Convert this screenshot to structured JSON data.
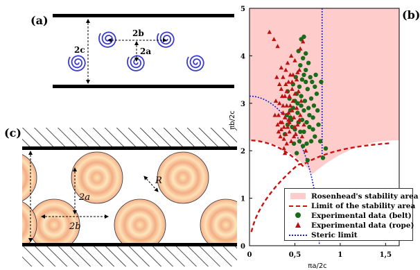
{
  "panel_a": {
    "label": "(a)",
    "dim_2b": "2b",
    "dim_2a": "2a",
    "dim_2c": "2c"
  },
  "panel_c": {
    "label": "(c)",
    "dim_2c": "2c",
    "dim_2a": "2a",
    "dim_2b": "2b",
    "dim_R": "R"
  },
  "panel_b": {
    "label": "(b)",
    "colors": {
      "stability_area": "#ffcccc",
      "limit_line": "#cc1111",
      "belt": "#1a6b1a",
      "rope": "#bb1111",
      "steric": "#1122cc"
    }
  },
  "chart_data": {
    "type": "scatter",
    "xlabel": "πa/2c",
    "ylabel": "πb/2c",
    "xlim": [
      0,
      1.65
    ],
    "ylim": [
      0,
      5
    ],
    "x_ticks": [
      "0",
      "0,5",
      "1",
      "1,5"
    ],
    "y_ticks": [
      "0",
      "1",
      "2",
      "3",
      "4",
      "5"
    ],
    "legend_position": "bottom-right",
    "series": [
      {
        "name": "Rosenhead's stability area",
        "kind": "region"
      },
      {
        "name": "Limit of the stability area",
        "kind": "dashed-line"
      },
      {
        "name": "Experimental data (belt)",
        "kind": "circle-markers",
        "points": [
          [
            0.39,
            2.35
          ],
          [
            0.42,
            2.55
          ],
          [
            0.45,
            2.7
          ],
          [
            0.48,
            2.9
          ],
          [
            0.5,
            3.05
          ],
          [
            0.52,
            3.2
          ],
          [
            0.55,
            3.35
          ],
          [
            0.58,
            3.5
          ],
          [
            0.6,
            3.6
          ],
          [
            0.62,
            3.7
          ],
          [
            0.44,
            3.1
          ],
          [
            0.47,
            2.5
          ],
          [
            0.53,
            2.8
          ],
          [
            0.57,
            2.95
          ],
          [
            0.6,
            2.4
          ],
          [
            0.63,
            2.6
          ],
          [
            0.65,
            2.9
          ],
          [
            0.68,
            3.1
          ],
          [
            0.7,
            2.7
          ],
          [
            0.72,
            2.3
          ],
          [
            0.55,
            2.2
          ],
          [
            0.5,
            2.45
          ],
          [
            0.58,
            2.65
          ],
          [
            0.61,
            3.05
          ],
          [
            0.64,
            3.3
          ],
          [
            0.67,
            3.55
          ],
          [
            0.56,
            3.8
          ],
          [
            0.59,
            3.95
          ],
          [
            0.54,
            4.1
          ],
          [
            0.62,
            4.05
          ],
          [
            0.57,
            4.35
          ],
          [
            0.6,
            4.4
          ],
          [
            0.48,
            3.4
          ],
          [
            0.51,
            3.55
          ],
          [
            0.45,
            2.85
          ],
          [
            0.66,
            2.5
          ],
          [
            0.71,
            2.95
          ],
          [
            0.74,
            3.2
          ],
          [
            0.69,
            3.45
          ],
          [
            0.76,
            2.55
          ],
          [
            0.78,
            2.2
          ],
          [
            0.81,
            1.85
          ],
          [
            0.84,
            2.05
          ],
          [
            0.52,
            1.95
          ],
          [
            0.49,
            2.15
          ],
          [
            0.63,
            2.15
          ],
          [
            0.42,
            3.25
          ],
          [
            0.73,
            3.6
          ],
          [
            0.79,
            3.45
          ],
          [
            0.65,
            3.85
          ],
          [
            0.53,
            3.0
          ],
          [
            0.6,
            2.85
          ],
          [
            0.66,
            2.75
          ],
          [
            0.57,
            3.15
          ],
          [
            0.46,
            2.65
          ],
          [
            0.7,
            2.45
          ],
          [
            0.54,
            2.6
          ],
          [
            0.62,
            3.45
          ],
          [
            0.68,
            2.2
          ],
          [
            0.75,
            2.85
          ],
          [
            0.41,
            2.75
          ],
          [
            0.59,
            2.1
          ],
          [
            0.64,
            1.8
          ],
          [
            0.72,
            3.35
          ],
          [
            0.56,
            2.4
          ]
        ]
      },
      {
        "name": "Experimental data (rope)",
        "kind": "triangle-markers",
        "points": [
          [
            0.22,
            4.5
          ],
          [
            0.27,
            4.35
          ],
          [
            0.31,
            4.2
          ],
          [
            0.3,
            3.55
          ],
          [
            0.35,
            3.3
          ],
          [
            0.33,
            3.0
          ],
          [
            0.37,
            2.8
          ],
          [
            0.36,
            2.6
          ],
          [
            0.39,
            3.15
          ],
          [
            0.41,
            2.95
          ],
          [
            0.38,
            2.5
          ],
          [
            0.34,
            2.3
          ],
          [
            0.4,
            3.4
          ],
          [
            0.43,
            2.65
          ],
          [
            0.45,
            3.6
          ],
          [
            0.42,
            3.85
          ],
          [
            0.47,
            3.3
          ],
          [
            0.44,
            2.4
          ],
          [
            0.46,
            2.2
          ],
          [
            0.49,
            2.7
          ],
          [
            0.5,
            3.9
          ],
          [
            0.48,
            3.05
          ],
          [
            0.52,
            3.5
          ],
          [
            0.51,
            2.35
          ],
          [
            0.55,
            3.7
          ],
          [
            0.53,
            2.55
          ],
          [
            0.37,
            3.55
          ],
          [
            0.32,
            2.75
          ],
          [
            0.35,
            2.45
          ],
          [
            0.41,
            2.15
          ],
          [
            0.44,
            3.15
          ],
          [
            0.4,
            2.35
          ],
          [
            0.36,
            3.15
          ],
          [
            0.39,
            2.7
          ],
          [
            0.43,
            3.45
          ],
          [
            0.47,
            2.85
          ],
          [
            0.33,
            3.4
          ],
          [
            0.31,
            2.55
          ],
          [
            0.38,
            2.05
          ],
          [
            0.45,
            2.95
          ],
          [
            0.5,
            2.5
          ],
          [
            0.54,
            3.25
          ],
          [
            0.42,
            2.5
          ],
          [
            0.48,
            3.6
          ],
          [
            0.57,
            3.05
          ],
          [
            0.58,
            2.3
          ],
          [
            0.35,
            3.75
          ],
          [
            0.29,
            3.05
          ],
          [
            0.46,
            4.0
          ],
          [
            0.4,
            3.7
          ],
          [
            0.56,
            4.15
          ],
          [
            0.59,
            4.3
          ],
          [
            0.37,
            2.95
          ],
          [
            0.43,
            2.8
          ],
          [
            0.49,
            2.3
          ],
          [
            0.52,
            2.9
          ],
          [
            0.55,
            2.65
          ],
          [
            0.34,
            2.6
          ],
          [
            0.41,
            3.25
          ],
          [
            0.47,
            3.45
          ],
          [
            0.53,
            3.65
          ],
          [
            0.38,
            2.25
          ],
          [
            0.32,
            2.4
          ],
          [
            0.44,
            2.6
          ],
          [
            0.5,
            3.2
          ],
          [
            0.56,
            2.75
          ],
          [
            0.28,
            2.75
          ],
          [
            0.6,
            2.55
          ],
          [
            0.39,
            1.95
          ],
          [
            0.62,
            2.0
          ]
        ]
      },
      {
        "name": "Steric limit",
        "kind": "dotted-line"
      }
    ]
  },
  "legend": {
    "items": [
      "Rosenhead's stability area",
      "Limit of the stability area",
      "Experimental data (belt)",
      "Experimental data (rope)",
      "Steric limit"
    ]
  }
}
